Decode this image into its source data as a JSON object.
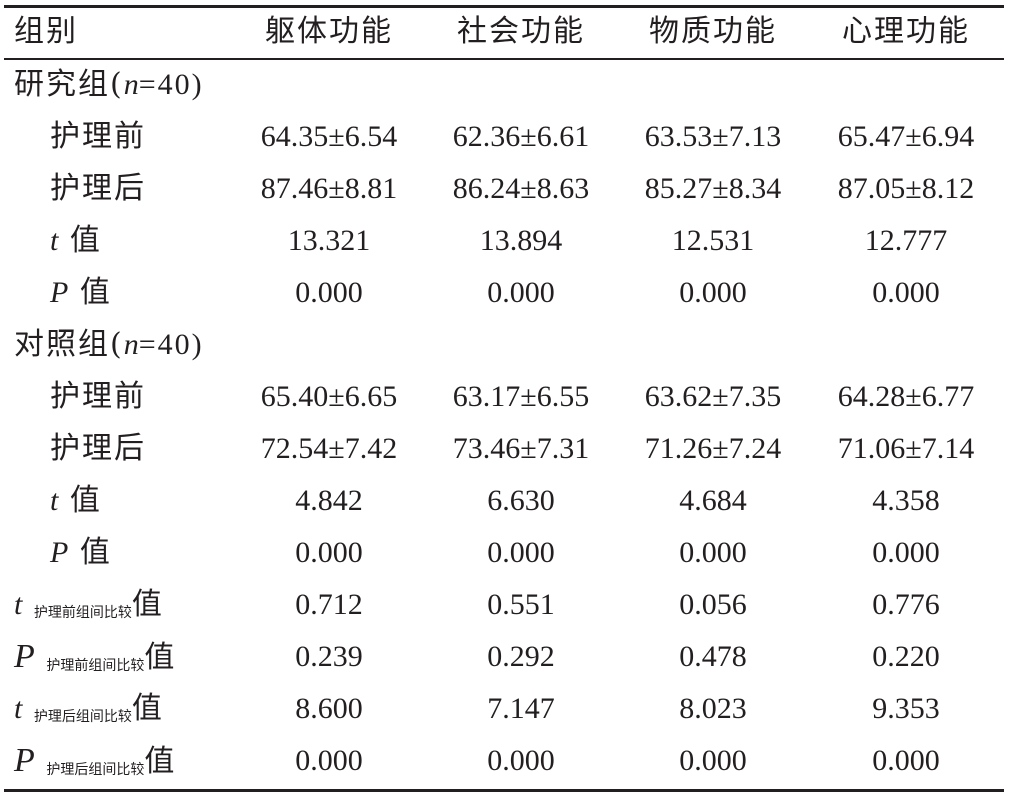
{
  "header": {
    "col0": "组别",
    "col1": "躯体功能",
    "col2": "社会功能",
    "col3": "物质功能",
    "col4": "心理功能"
  },
  "groups": [
    {
      "name_prefix": "研究组(",
      "name_n": "n",
      "name_suffix": "=40)",
      "rows": [
        {
          "label": "护理前",
          "values": [
            "64.35±6.54",
            "62.36±6.61",
            "63.53±7.13",
            "65.47±6.94"
          ]
        },
        {
          "label": "护理后",
          "values": [
            "87.46±8.81",
            "86.24±8.63",
            "85.27±8.34",
            "87.05±8.12"
          ]
        },
        {
          "label_italic": "t",
          "label": " 值",
          "values": [
            "13.321",
            "13.894",
            "12.531",
            "12.777"
          ]
        },
        {
          "label_italic": "P",
          "label": " 值",
          "values": [
            "0.000",
            "0.000",
            "0.000",
            "0.000"
          ]
        }
      ]
    },
    {
      "name_prefix": "对照组(",
      "name_n": "n",
      "name_suffix": "=40)",
      "rows": [
        {
          "label": "护理前",
          "values": [
            "65.40±6.65",
            "63.17±6.55",
            "63.62±7.35",
            "64.28±6.77"
          ]
        },
        {
          "label": "护理后",
          "values": [
            "72.54±7.42",
            "73.46±7.31",
            "71.26±7.24",
            "71.06±7.14"
          ]
        },
        {
          "label_italic": "t",
          "label": " 值",
          "values": [
            "4.842",
            "6.630",
            "4.684",
            "4.358"
          ]
        },
        {
          "label_italic": "P",
          "label": " 值",
          "values": [
            "0.000",
            "0.000",
            "0.000",
            "0.000"
          ]
        }
      ]
    }
  ],
  "comparisons": [
    {
      "stat": "t",
      "sub": "护理前组间比较",
      "suffix": "值",
      "values": [
        "0.712",
        "0.551",
        "0.056",
        "0.776"
      ]
    },
    {
      "stat": "P",
      "sub": "护理前组间比较",
      "suffix": "值",
      "values": [
        "0.239",
        "0.292",
        "0.478",
        "0.220"
      ]
    },
    {
      "stat": "t",
      "sub": "护理后组间比较",
      "suffix": "值",
      "values": [
        "8.600",
        "7.147",
        "8.023",
        "9.353"
      ]
    },
    {
      "stat": "P",
      "sub": "护理后组间比较",
      "suffix": "值",
      "values": [
        "0.000",
        "0.000",
        "0.000",
        "0.000"
      ]
    }
  ]
}
